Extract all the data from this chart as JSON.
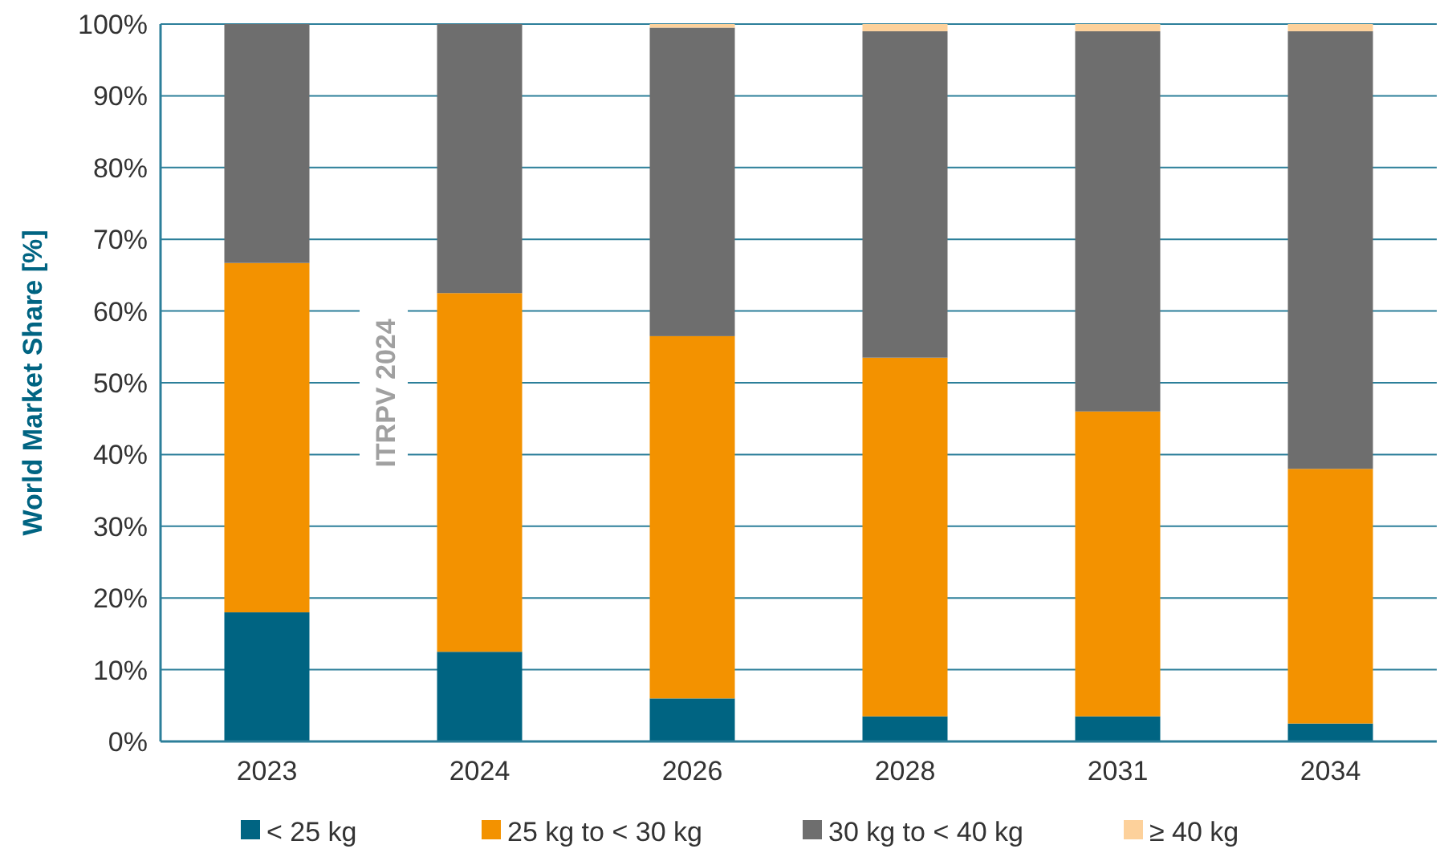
{
  "chart_data": {
    "type": "bar",
    "stacked": true,
    "ylabel": "World Market Share [%]",
    "categories": [
      "2023",
      "2024",
      "2026",
      "2028",
      "2031",
      "2034"
    ],
    "series": [
      {
        "name": "< 25 kg",
        "color": "#006482",
        "values": [
          18,
          12.5,
          6,
          3.5,
          3.5,
          2.5
        ]
      },
      {
        "name": "25 kg to < 30 kg",
        "color": "#f39200",
        "values": [
          48.7,
          50,
          50.5,
          50,
          42.5,
          35.5
        ]
      },
      {
        "name": "30 kg to < 40 kg",
        "color": "#6e6e6e",
        "values": [
          33.3,
          37.5,
          43,
          45.5,
          53,
          61
        ]
      },
      {
        "name": "≥ 40 kg",
        "color": "#fdd19b",
        "values": [
          0,
          0,
          0.5,
          1,
          1,
          1
        ]
      }
    ],
    "ylim": [
      0,
      100
    ],
    "yticks": [
      {
        "value": 0,
        "label": "0%"
      },
      {
        "value": 10,
        "label": "10%"
      },
      {
        "value": 20,
        "label": "20%"
      },
      {
        "value": 30,
        "label": "30%"
      },
      {
        "value": 40,
        "label": "40%"
      },
      {
        "value": 50,
        "label": "50%"
      },
      {
        "value": 60,
        "label": "60%"
      },
      {
        "value": 70,
        "label": "70%"
      },
      {
        "value": 80,
        "label": "80%"
      },
      {
        "value": 90,
        "label": "90%"
      },
      {
        "value": 100,
        "label": "100%"
      }
    ],
    "grid": "y",
    "legend": "bottom",
    "annotations": [
      "ITRPV 2024"
    ]
  }
}
